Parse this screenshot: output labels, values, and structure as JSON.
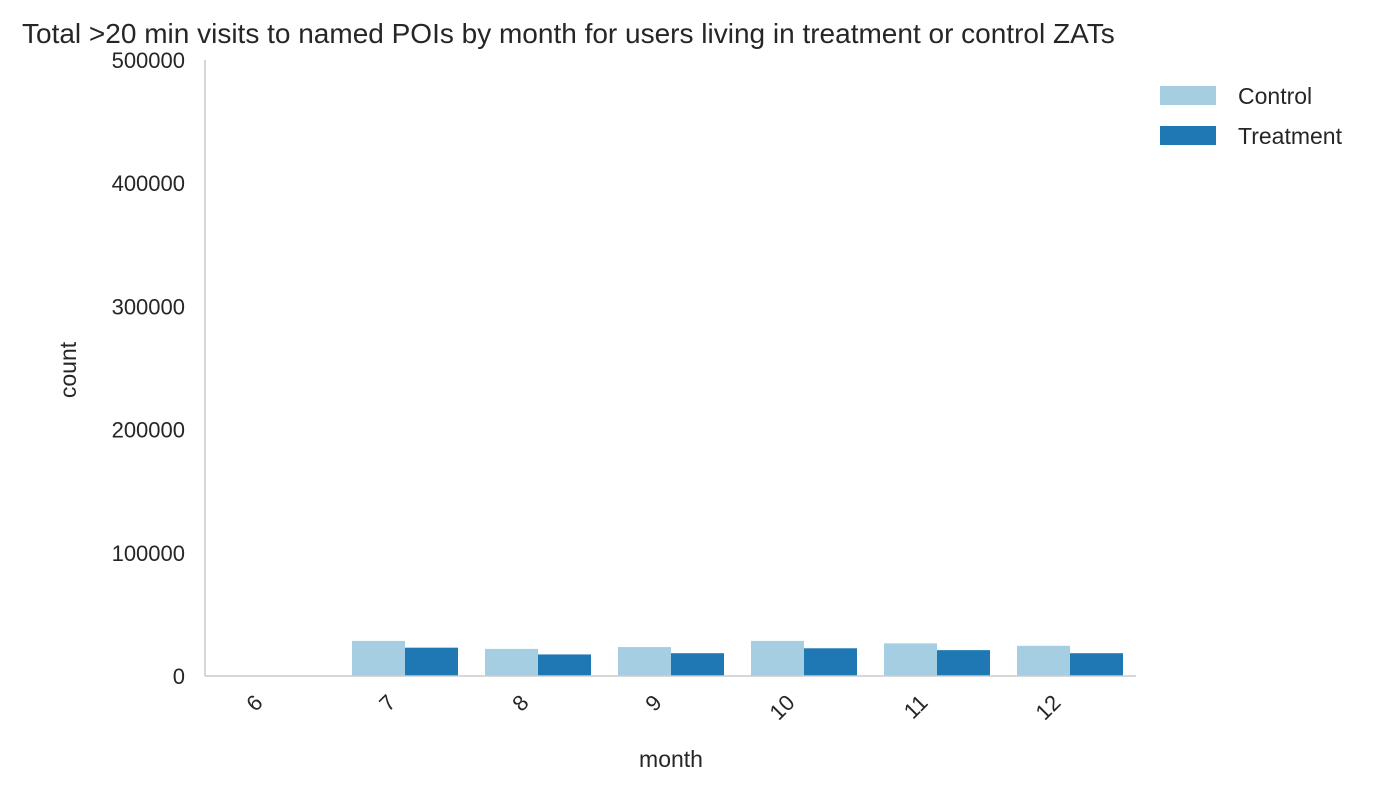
{
  "chart_data": {
    "type": "bar",
    "title": "Total >20 min visits to named POIs by month for users living in treatment or control ZATs",
    "xlabel": "month",
    "ylabel": "count",
    "categories": [
      "6",
      "7",
      "8",
      "9",
      "10",
      "11",
      "12"
    ],
    "series": [
      {
        "name": "Control",
        "color": "#a6cee3",
        "values": [
          0,
          28500,
          22000,
          23500,
          28500,
          26500,
          24500
        ]
      },
      {
        "name": "Treatment",
        "color": "#1f78b4",
        "values": [
          0,
          23000,
          17500,
          18500,
          22500,
          21000,
          18500
        ]
      }
    ],
    "ylim": [
      0,
      500000
    ],
    "yticks": [
      0,
      100000,
      200000,
      300000,
      400000,
      500000
    ],
    "legend_position": "top-right",
    "grid": false
  }
}
